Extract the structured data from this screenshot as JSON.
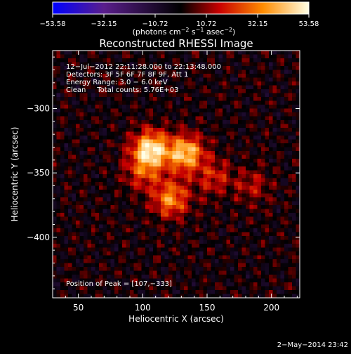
{
  "chart_data": {
    "type": "heatmap",
    "title": "Reconstructed RHESSI Image",
    "xlabel": "Heliocentric X (arcsec)",
    "ylabel": "Heliocentric Y (arcsec)",
    "xlim": [
      30,
      222
    ],
    "ylim": [
      -447,
      -255
    ],
    "x_ticks": [
      50,
      100,
      150,
      200
    ],
    "y_ticks": [
      -300,
      -350,
      -400
    ],
    "grid": false,
    "colorbar": {
      "ticks": [
        "−53.58",
        "−32.15",
        "−10.72",
        "10.72",
        "32.15",
        "53.58"
      ],
      "range": [
        -53.58,
        53.58
      ],
      "label_main": "(photons cm",
      "label_sup1": "−2",
      "label_mid": " s",
      "label_sup2": "−1",
      "label_end": " asec",
      "label_sup3": "−2",
      "label_close": ")",
      "colors": [
        "#0000ff",
        "#5a1e8c",
        "#000000",
        "#c80000",
        "#ff8c00",
        "#ffffe6"
      ]
    },
    "annotations": [
      "12−Jul−2012 22:11:28.000 to 22:13:48.000",
      "Detectors: 3F 5F 6F 7F 8F 9F, Att 1",
      "Energy Range: 3.0 − 6.0 keV",
      "Clean     Total counts: 5.76E+03"
    ],
    "peak_label": "Position of Peak = [107,−333]",
    "peak": [
      107,
      -333
    ],
    "sources": [
      {
        "x": 106,
        "y": -332,
        "amplitude": 50
      },
      {
        "x": 133,
        "y": -335,
        "amplitude": 44
      },
      {
        "x": 122,
        "y": -370,
        "amplitude": 34
      },
      {
        "x": 155,
        "y": -353,
        "amplitude": 18
      },
      {
        "x": 100,
        "y": -350,
        "amplitude": 20
      },
      {
        "x": 185,
        "y": -360,
        "amplitude": 14
      }
    ]
  },
  "footer": {
    "date": "2−May−2014 23:42"
  }
}
